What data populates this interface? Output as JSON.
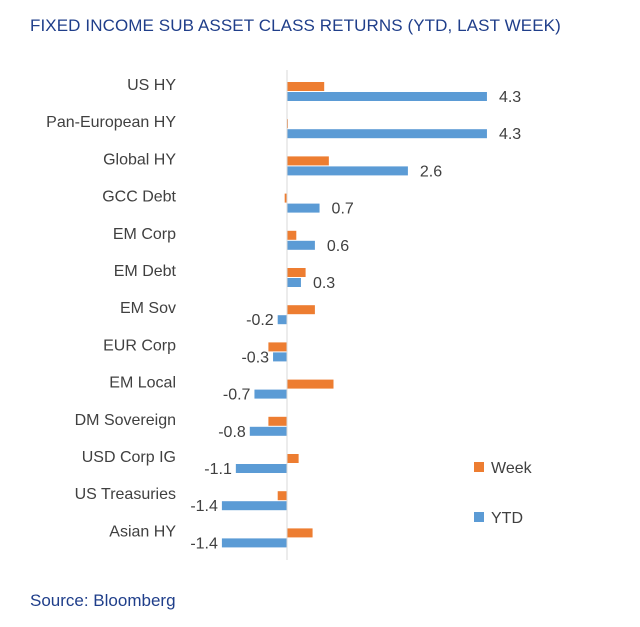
{
  "title": "FIXED INCOME SUB  ASSET CLASS RETURNS (YTD, LAST WEEK)",
  "source": "Source: Bloomberg",
  "colors": {
    "week": "#ED7D31",
    "ytd": "#5B9BD5",
    "axis": "#D9D9D9"
  },
  "chart_data": {
    "type": "bar",
    "orientation": "horizontal",
    "categories": [
      "US HY",
      "Pan-European HY",
      "Global HY",
      "GCC Debt",
      "EM Corp",
      "EM Debt",
      "EM Sov",
      "EUR Corp",
      "EM Local",
      "DM Sovereign",
      "USD Corp IG",
      "US Treasuries",
      "Asian HY"
    ],
    "series": [
      {
        "name": "Week",
        "values": [
          0.8,
          0.02,
          0.9,
          -0.05,
          0.2,
          0.4,
          0.6,
          -0.4,
          1.0,
          -0.4,
          0.25,
          -0.2,
          0.55
        ]
      },
      {
        "name": "YTD",
        "values": [
          4.3,
          4.3,
          2.6,
          0.7,
          0.6,
          0.3,
          -0.2,
          -0.3,
          -0.7,
          -0.8,
          -1.1,
          -1.4,
          -1.4
        ]
      }
    ],
    "data_labels": [
      "4.3",
      "4.3",
      "2.6",
      "0.7",
      "0.6",
      "0.3",
      "-0.2",
      "-0.3",
      "-0.7",
      "-0.8",
      "-1.1",
      "-1.4",
      "-1.4"
    ],
    "legend": {
      "position": "right",
      "entries": [
        "Week",
        "YTD"
      ]
    },
    "grid": false
  }
}
